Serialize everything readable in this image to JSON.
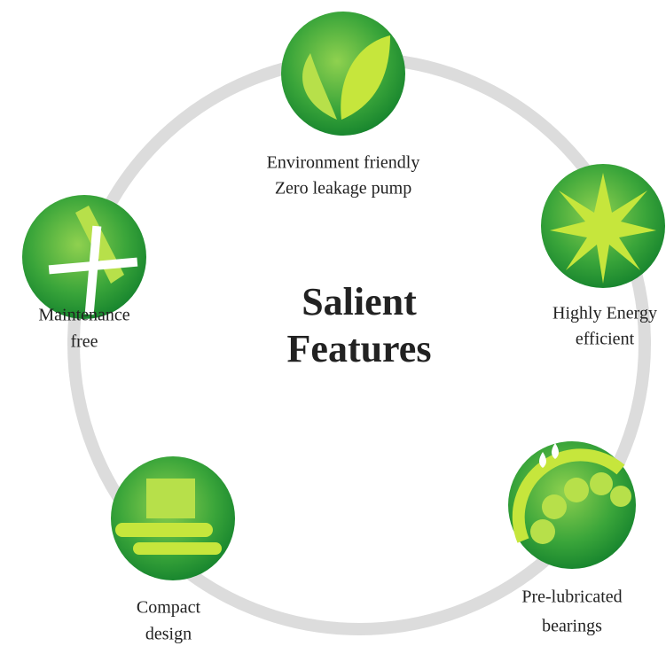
{
  "title": {
    "lines": [
      "Salient",
      "Features"
    ]
  },
  "nodes": [
    {
      "lines": [
        "Environment friendly",
        "Zero leakage pump"
      ]
    },
    {
      "lines": [
        "Highly Energy",
        "efficient"
      ]
    },
    {
      "lines": [
        "Pre-lubricated",
        "bearings"
      ]
    },
    {
      "lines": [
        "Compact",
        "design"
      ]
    },
    {
      "lines": [
        "Maintenance",
        "free"
      ]
    }
  ]
}
